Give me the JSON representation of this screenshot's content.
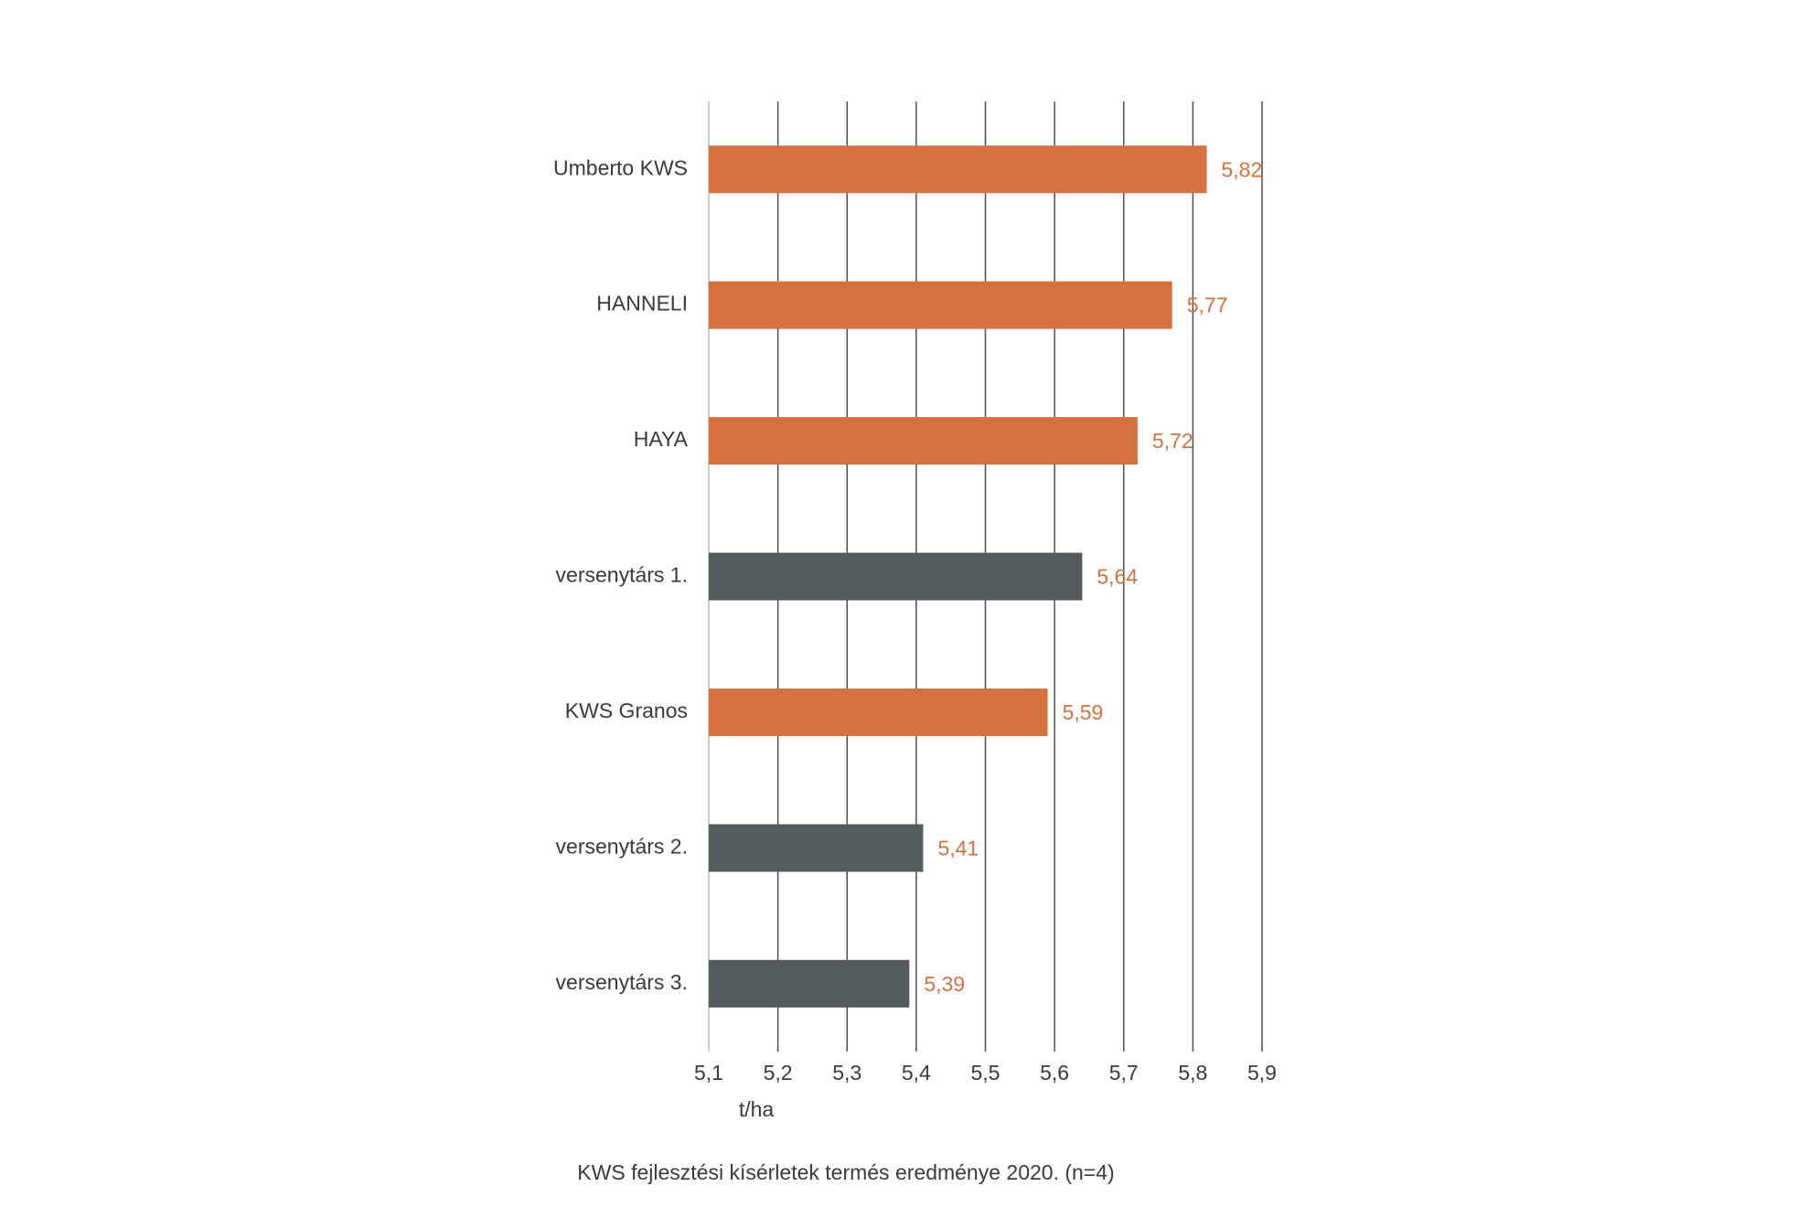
{
  "chart_data": {
    "type": "barh",
    "caption": "KWS fejlesztési kísérletek termés eredménye 2020. (n=4)",
    "x_label": "t/ha",
    "categories": [
      "Umberto KWS",
      "HANNELI",
      "HAYA",
      "versenytárs 1.",
      "KWS Granos",
      "versenytárs 2.",
      "versenytárs 3."
    ],
    "values": [
      5.82,
      5.77,
      5.72,
      5.64,
      5.59,
      5.41,
      5.39
    ],
    "value_labels": [
      "5,82",
      "5,77",
      "5,72",
      "5,64",
      "5,59",
      "5,41",
      "5,39"
    ],
    "colors": [
      "#d5703f",
      "#d5703f",
      "#d5703f",
      "#535b5c",
      "#d5703f",
      "#535b5c",
      "#535b5c"
    ],
    "value_label_color": "#d5703f",
    "xlim": [
      5.1,
      5.9
    ],
    "xticks": [
      {
        "value": 5.1,
        "label": "5,1"
      },
      {
        "value": 5.2,
        "label": "5,2"
      },
      {
        "value": 5.3,
        "label": "5,3"
      },
      {
        "value": 5.4,
        "label": "5,4"
      },
      {
        "value": 5.5,
        "label": "5,5"
      },
      {
        "value": 5.6,
        "label": "5,6"
      },
      {
        "value": 5.7,
        "label": "5,7"
      },
      {
        "value": 5.8,
        "label": "5,8"
      },
      {
        "value": 5.9,
        "label": "5,9"
      }
    ],
    "grid": true
  }
}
